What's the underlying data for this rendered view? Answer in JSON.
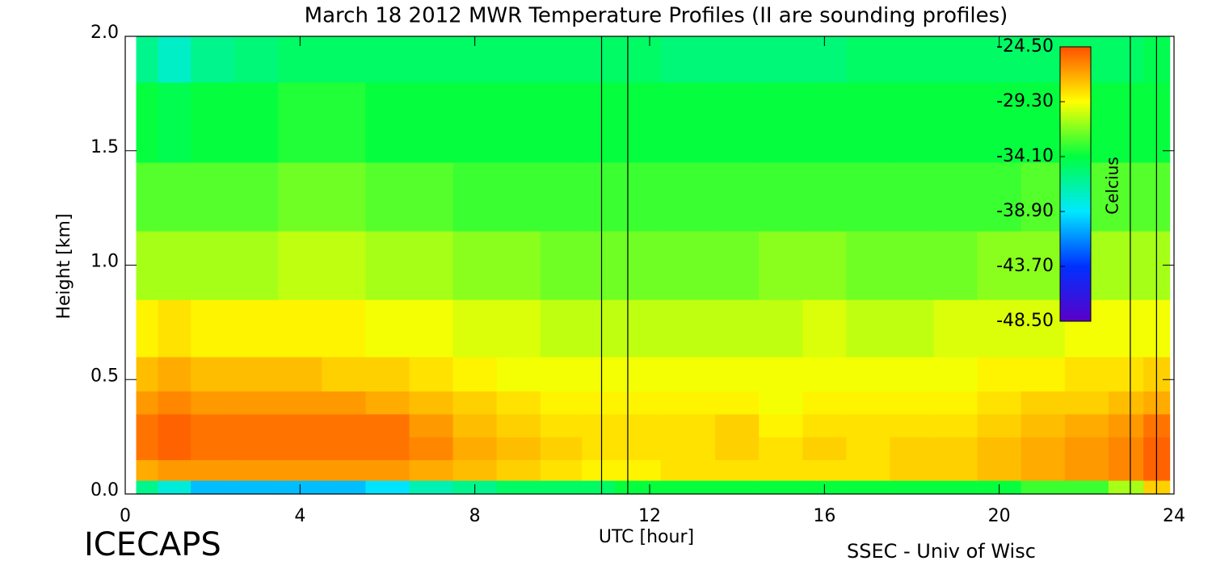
{
  "chart_data": {
    "type": "contour",
    "title": "March 18 2012 MWR Temperature Profiles (II are sounding profiles)",
    "xlabel": "UTC [hour]",
    "ylabel": "Height [km]",
    "colorbar_label": "Celcius",
    "footer_left": "ICECAPS",
    "footer_right": "SSEC - Univ of Wisc",
    "xlim": [
      0,
      24
    ],
    "xticks": [
      0,
      4,
      8,
      12,
      16,
      20,
      24
    ],
    "ylim": [
      0,
      2
    ],
    "yticks": [
      {
        "value": 0,
        "label": "0.0"
      },
      {
        "value": 0.5,
        "label": "0.5"
      },
      {
        "value": 1,
        "label": "1.0"
      },
      {
        "value": 1.5,
        "label": "1.5"
      },
      {
        "value": 2,
        "label": "2.0"
      }
    ],
    "clim": [
      -48.5,
      -24.5
    ],
    "cticks": [
      {
        "value": -24.5,
        "label": "-24.50"
      },
      {
        "value": -29.3,
        "label": "-29.30"
      },
      {
        "value": -34.1,
        "label": "-34.10"
      },
      {
        "value": -38.9,
        "label": "-38.90"
      },
      {
        "value": -43.7,
        "label": "-43.70"
      },
      {
        "value": -48.5,
        "label": "-48.50"
      }
    ],
    "colormap": [
      "#5a00c8",
      "#0030ff",
      "#00e8ff",
      "#00ff40",
      "#ffff00",
      "#ff5000"
    ],
    "sounding_times": [
      10.9,
      11.5,
      23.0,
      23.6
    ],
    "x": [
      0.5,
      1,
      2,
      3,
      4,
      5,
      6,
      7,
      8,
      9,
      10,
      10.9,
      11.5,
      13,
      14,
      15,
      16,
      17,
      18,
      19,
      20,
      21,
      22,
      23,
      23.6
    ],
    "heights": [
      0.02,
      0.1,
      0.2,
      0.3,
      0.4,
      0.5,
      0.7,
      1.0,
      1.3,
      1.6,
      2.0
    ],
    "z": [
      [
        -36,
        -38,
        -40,
        -40,
        -40,
        -40,
        -39,
        -37,
        -36,
        -35,
        -35,
        -35,
        -34,
        -34,
        -34,
        -34,
        -34,
        -34,
        -34,
        -34,
        -34,
        -33,
        -33,
        -31,
        -28
      ],
      [
        -27,
        -26.5,
        -26.5,
        -26.5,
        -26.5,
        -26.5,
        -26.5,
        -27,
        -27.5,
        -28,
        -28.5,
        -29,
        -29,
        -28.5,
        -28.5,
        -28.5,
        -28.5,
        -28.5,
        -28,
        -28,
        -27.5,
        -27,
        -26.5,
        -26,
        -25
      ],
      [
        -25.5,
        -25,
        -25.5,
        -25.5,
        -25.5,
        -25.5,
        -25.5,
        -26,
        -27,
        -27.5,
        -28,
        -28.5,
        -28.5,
        -28.5,
        -28,
        -28.5,
        -28,
        -28.5,
        -28,
        -28,
        -27.5,
        -27,
        -26.5,
        -26,
        -25
      ],
      [
        -25.5,
        -25,
        -25.5,
        -25.5,
        -25.5,
        -25.5,
        -25.5,
        -26.5,
        -27.5,
        -28,
        -28.5,
        -28.5,
        -28.5,
        -28.5,
        -28,
        -29,
        -28.5,
        -28.5,
        -28.5,
        -28.5,
        -28,
        -27.5,
        -27,
        -26.5,
        -25.5
      ],
      [
        -26.5,
        -26,
        -26.5,
        -26.5,
        -26.5,
        -26.5,
        -27,
        -27.5,
        -28,
        -28.5,
        -29,
        -29,
        -29,
        -29,
        -29,
        -29.5,
        -29,
        -29,
        -29,
        -29,
        -28.5,
        -28,
        -28,
        -27.5,
        -27
      ],
      [
        -27.5,
        -27,
        -27.5,
        -27.5,
        -27.5,
        -28,
        -28,
        -28.5,
        -29,
        -29.5,
        -29.5,
        -29.5,
        -29.5,
        -29.5,
        -29.5,
        -29.5,
        -29.5,
        -29.5,
        -29.5,
        -29.5,
        -29,
        -29,
        -28.5,
        -28.5,
        -28
      ],
      [
        -29,
        -28.5,
        -29,
        -29,
        -29,
        -29,
        -29.5,
        -29.5,
        -30,
        -30,
        -30.5,
        -30.5,
        -30.5,
        -30.5,
        -30.5,
        -30.5,
        -30,
        -30.5,
        -30.5,
        -30,
        -30,
        -30,
        -29.5,
        -29.5,
        -29.5
      ],
      [
        -31,
        -31,
        -31,
        -31,
        -30.5,
        -30.5,
        -31,
        -31,
        -31.5,
        -31.5,
        -32,
        -32,
        -32,
        -32,
        -32,
        -31.5,
        -31.5,
        -32,
        -32,
        -32,
        -31.5,
        -31.5,
        -31,
        -31,
        -31
      ],
      [
        -32.5,
        -32.5,
        -32.5,
        -32.5,
        -32,
        -32,
        -32.5,
        -32.5,
        -33,
        -33,
        -33,
        -33,
        -33,
        -33,
        -33,
        -33,
        -33,
        -33,
        -33,
        -33,
        -33,
        -32.5,
        -32.5,
        -32.5,
        -32.5
      ],
      [
        -34,
        -34.5,
        -34,
        -34,
        -33.5,
        -33.5,
        -34,
        -34,
        -34,
        -34,
        -34,
        -34,
        -34,
        -34,
        -34,
        -34,
        -34,
        -34,
        -34,
        -34,
        -34,
        -34,
        -34,
        -34,
        -34
      ],
      [
        -36,
        -37.5,
        -36,
        -35.5,
        -35,
        -35,
        -35,
        -35,
        -35,
        -35,
        -35,
        -35,
        -35,
        -35.5,
        -35.5,
        -35.5,
        -35.5,
        -35,
        -35,
        -35,
        -35,
        -35,
        -35,
        -35,
        -34.5
      ]
    ]
  }
}
